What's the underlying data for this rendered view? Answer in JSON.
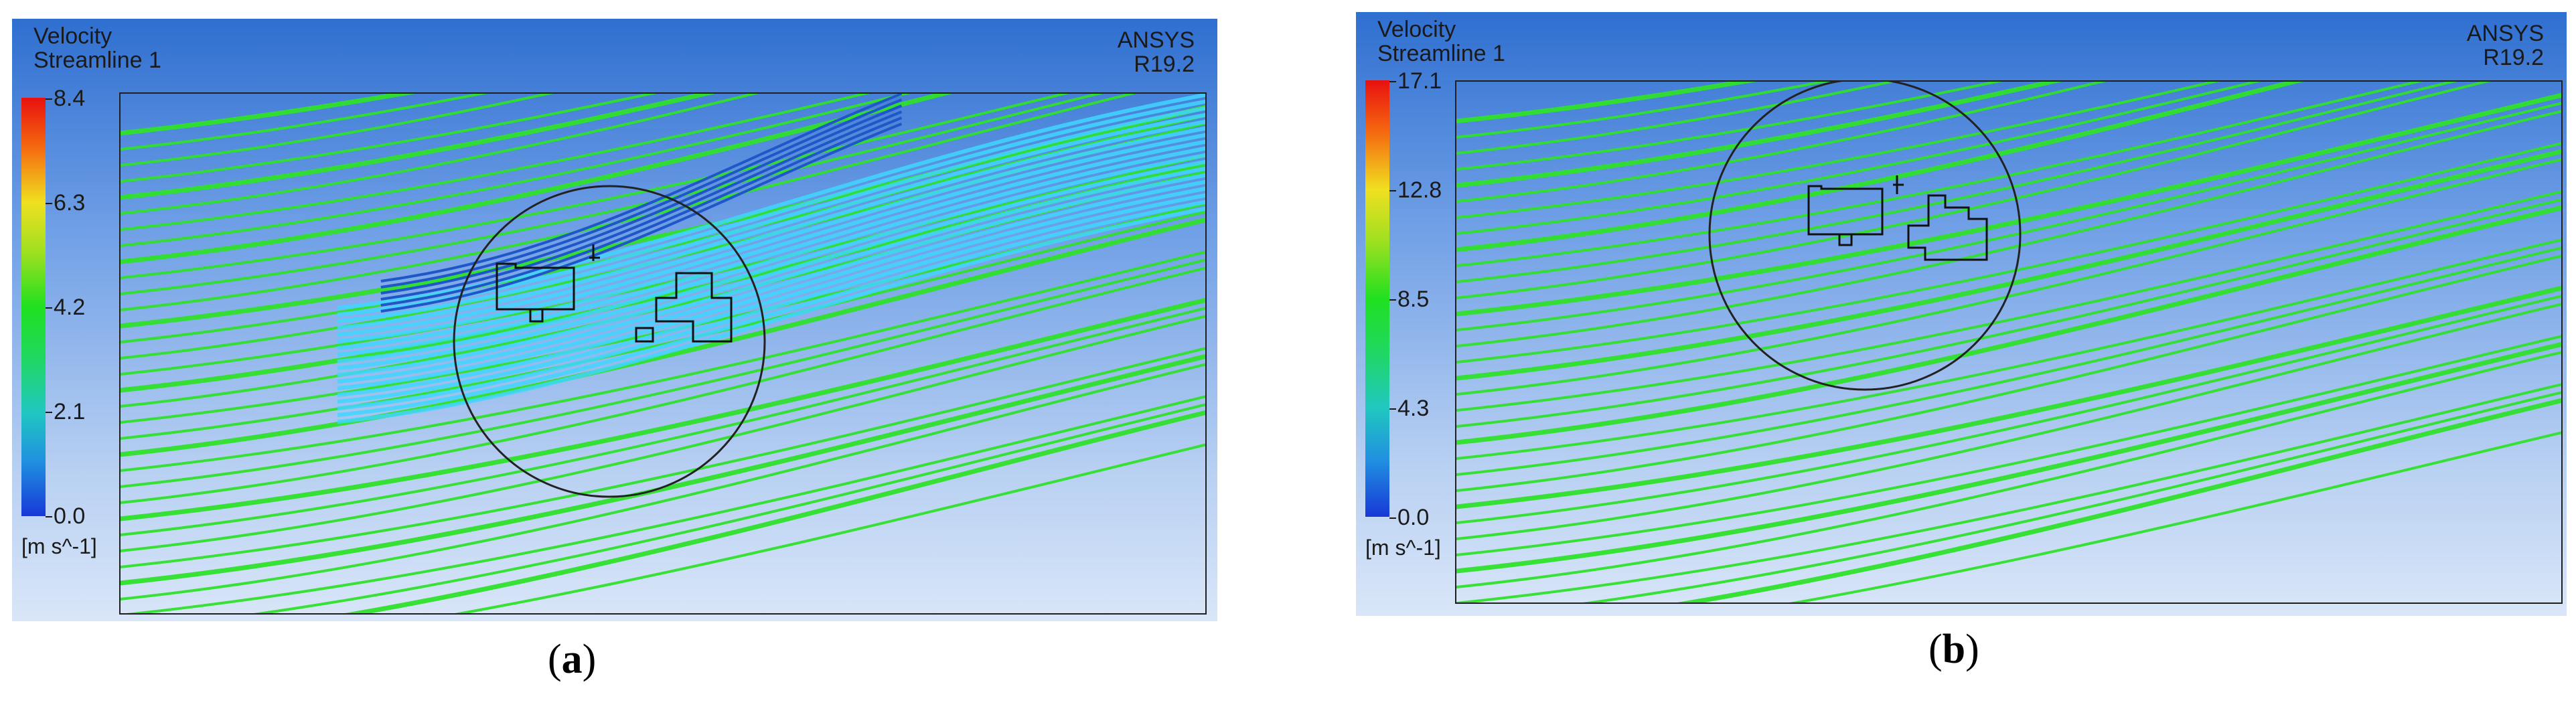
{
  "panels": [
    {
      "title_line1": "Velocity",
      "title_line2": "Streamline 1",
      "brand_line1": "ANSYS",
      "brand_line2": "R19.2",
      "legend_ticks": [
        "8.4",
        "6.3",
        "4.2",
        "2.1",
        "0.0"
      ],
      "unit": "[m s^-1]",
      "caption_open": "(",
      "caption_letter": "a",
      "caption_close": ")"
    },
    {
      "title_line1": "Velocity",
      "title_line2": "Streamline 1",
      "brand_line1": "ANSYS",
      "brand_line2": "R19.2",
      "legend_ticks": [
        "17.1",
        "12.8",
        "8.5",
        "4.3",
        "0.0"
      ],
      "unit": "[m s^-1]",
      "caption_open": "(",
      "caption_letter": "b",
      "caption_close": ")"
    }
  ],
  "colors": {
    "streamline_green": "#2fe02a",
    "streamline_cyan": "#3fd6ff",
    "streamline_blue": "#1f56c8",
    "circle": "#222222"
  }
}
